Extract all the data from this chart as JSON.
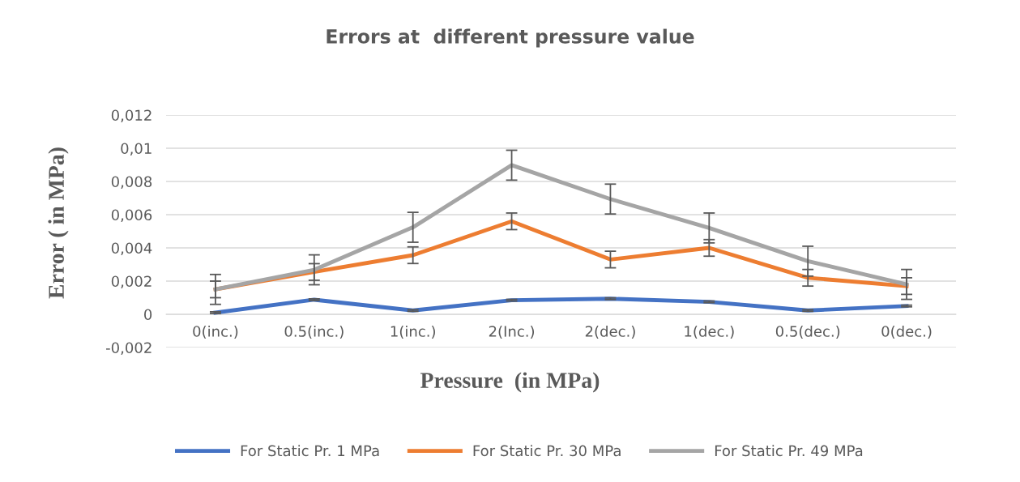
{
  "chart_data": {
    "type": "line",
    "title": "Errors at  different pressure value",
    "xlabel": "Pressure  (in MPa)",
    "ylabel": "Error ( in MPa)",
    "categories": [
      "0(inc.)",
      "0.5(inc.)",
      "1(inc.)",
      "2(Inc.)",
      "2(dec.)",
      "1(dec.)",
      "0.5(dec.)",
      "0(dec.)"
    ],
    "series": [
      {
        "name": "For Static Pr. 1 MPa",
        "color": "#4472c4",
        "values": [
          0.0001,
          0.00088,
          0.00023,
          0.00085,
          0.00094,
          0.00075,
          0.00023,
          0.0005
        ],
        "errors": [
          5e-05,
          5e-05,
          5e-05,
          5e-05,
          5e-05,
          5e-05,
          5e-05,
          5e-05
        ]
      },
      {
        "name": "For Static Pr. 30 MPa",
        "color": "#ed7d31",
        "values": [
          0.0015,
          0.00255,
          0.00356,
          0.0056,
          0.0033,
          0.004,
          0.0022,
          0.0017
        ],
        "errors": [
          0.0005,
          0.0005,
          0.0005,
          0.0005,
          0.0005,
          0.0005,
          0.0005,
          0.0005
        ]
      },
      {
        "name": "For Static Pr. 49 MPa",
        "color": "#a5a5a5",
        "values": [
          0.0015,
          0.00268,
          0.00524,
          0.00898,
          0.00694,
          0.0052,
          0.0032,
          0.0018
        ],
        "errors": [
          0.0009,
          0.0009,
          0.0009,
          0.0009,
          0.0009,
          0.0009,
          0.0009,
          0.0009
        ]
      }
    ],
    "ylim": [
      -0.002,
      0.012
    ],
    "yticks": [
      {
        "value": -0.002,
        "label": "-0,002"
      },
      0,
      {
        "value": 0.002,
        "label": "0,002"
      },
      {
        "value": 0.004,
        "label": "0,004"
      },
      {
        "value": 0.006,
        "label": "0,006"
      },
      {
        "value": 0.008,
        "label": "0,008"
      },
      {
        "value": 0.01,
        "label": "0,01"
      },
      {
        "value": 0.012,
        "label": "0,012"
      }
    ],
    "grid": "y",
    "legend": "bottom",
    "marker": "none",
    "line_style": "solid"
  }
}
